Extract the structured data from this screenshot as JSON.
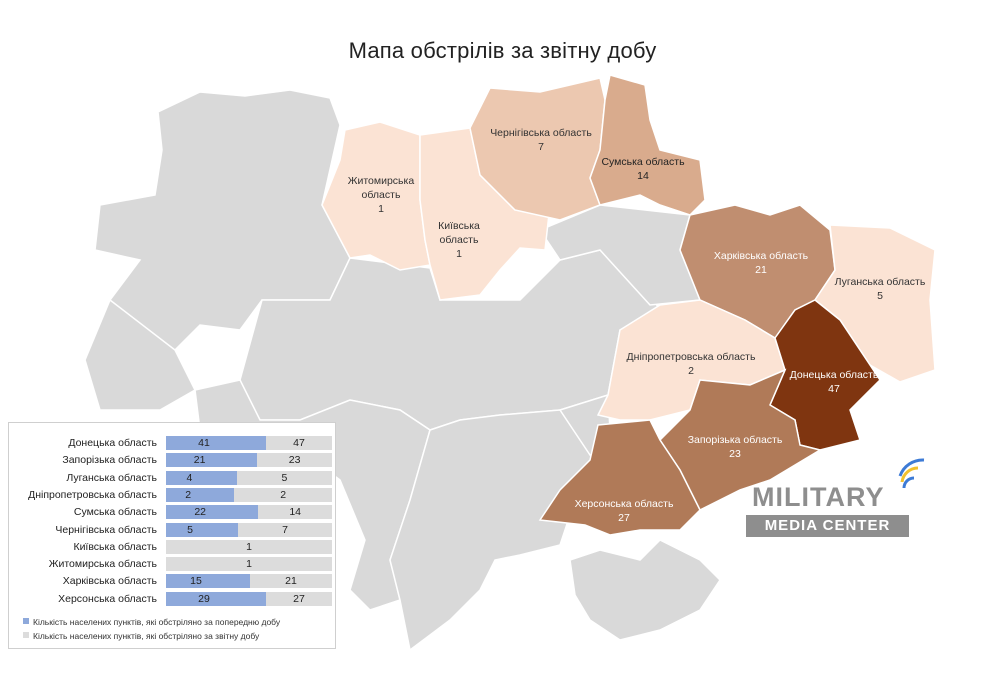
{
  "title": "Мапа обстрілів за звітну добу",
  "colors": {
    "background_region": "#d9d9d9",
    "region_border": "#ffffff",
    "scale": [
      "#fbe3d4",
      "#ecc8b0",
      "#d9ab8d",
      "#c08e70",
      "#b07a58",
      "#7f3510"
    ],
    "bar_prev": "#8ea9db",
    "bar_curr": "#dcdcdc"
  },
  "map": {
    "regions": [
      {
        "id": "zhytomyr",
        "name": "Житомирська область",
        "name_lines": [
          "Житомирська",
          "область"
        ],
        "value": "1",
        "label_color": "#333333"
      },
      {
        "id": "kyiv",
        "name": "Київська область",
        "name_lines": [
          "Київська",
          "область"
        ],
        "value": "1",
        "label_color": "#333333"
      },
      {
        "id": "chernihiv",
        "name": "Чернігівська область",
        "name_lines": [
          "Чернігівська область"
        ],
        "value": "7",
        "label_color": "#333333"
      },
      {
        "id": "sumy",
        "name": "Сумська область",
        "name_lines": [
          "Сумська область"
        ],
        "value": "14",
        "label_color": "#222222"
      },
      {
        "id": "kharkiv",
        "name": "Харківська область",
        "name_lines": [
          "Харківська область"
        ],
        "value": "21",
        "label_color": "#ffffff"
      },
      {
        "id": "luhansk",
        "name": "Луганська область",
        "name_lines": [
          "Луганська область"
        ],
        "value": "5",
        "label_color": "#333333"
      },
      {
        "id": "dnipro",
        "name": "Дніпропетровська область",
        "name_lines": [
          "Дніпропетровська область"
        ],
        "value": "2",
        "label_color": "#333333"
      },
      {
        "id": "donetsk",
        "name": "Донецька область",
        "name_lines": [
          "Донецька область"
        ],
        "value": "47",
        "label_color": "#ffffff"
      },
      {
        "id": "zaporizhzhia",
        "name": "Запорізька область",
        "name_lines": [
          "Запорізька область"
        ],
        "value": "23",
        "label_color": "#ffffff"
      },
      {
        "id": "kherson",
        "name": "Херсонська область",
        "name_lines": [
          "Херсонська область"
        ],
        "value": "27",
        "label_color": "#ffffff"
      }
    ]
  },
  "chart_data": {
    "type": "bar",
    "categories": [
      "Донецька область",
      "Запорізька область",
      "Луганська область",
      "Дніпропетровська область",
      "Сумська область",
      "Чернігівська область",
      "Київська область",
      "Житомирська область",
      "Харківська область",
      "Херсонська область"
    ],
    "series": [
      {
        "name": "Кількість населених пунктів, які обстріляно за попередню добу",
        "values": [
          41,
          21,
          4,
          2,
          22,
          5,
          null,
          null,
          15,
          29
        ]
      },
      {
        "name": "Кількість населених пунктів, які обстріляно за звітну добу",
        "values": [
          47,
          23,
          5,
          2,
          14,
          7,
          1,
          1,
          21,
          27
        ]
      }
    ],
    "stacked": true,
    "legend_position": "bottom"
  },
  "logo": {
    "top": "MILITARY",
    "bottom": "MEDIA CENTER"
  }
}
